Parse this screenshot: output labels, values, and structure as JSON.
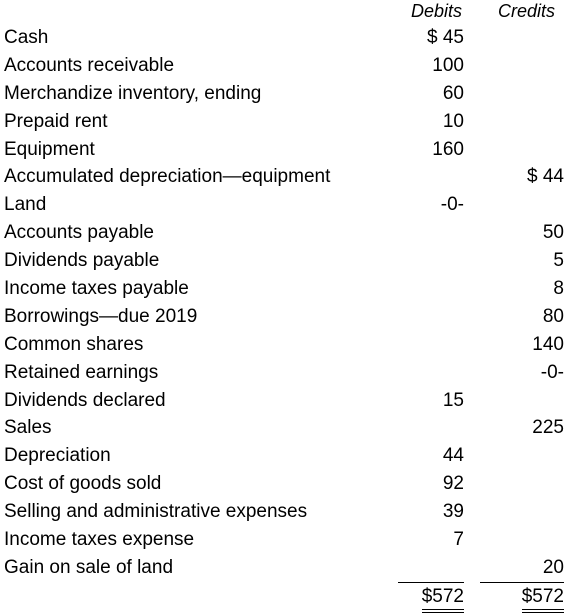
{
  "header": {
    "debit_label": "Debits",
    "credit_label": "Credits"
  },
  "rows": [
    {
      "account": "Cash",
      "debit": "$ 45",
      "credit": ""
    },
    {
      "account": "Accounts receivable",
      "debit": "100",
      "credit": ""
    },
    {
      "account": "Merchandize inventory, ending",
      "debit": "60",
      "credit": ""
    },
    {
      "account": "Prepaid rent",
      "debit": "10",
      "credit": ""
    },
    {
      "account": "Equipment",
      "debit": "160",
      "credit": ""
    },
    {
      "account": "Accumulated depreciation—equipment",
      "debit": "",
      "credit": "$ 44"
    },
    {
      "account": "Land",
      "debit": "-0-",
      "credit": ""
    },
    {
      "account": "Accounts payable",
      "debit": "",
      "credit": "50"
    },
    {
      "account": "Dividends payable",
      "debit": "",
      "credit": "5"
    },
    {
      "account": "Income taxes payable",
      "debit": "",
      "credit": "8"
    },
    {
      "account": "Borrowings—due 2019",
      "debit": "",
      "credit": "80"
    },
    {
      "account": "Common shares",
      "debit": "",
      "credit": "140"
    },
    {
      "account": "Retained earnings",
      "debit": "",
      "credit": "-0-"
    },
    {
      "account": "Dividends declared",
      "debit": "15",
      "credit": ""
    },
    {
      "account": "Sales",
      "debit": "",
      "credit": "225"
    },
    {
      "account": "Depreciation",
      "debit": "44",
      "credit": ""
    },
    {
      "account": "Cost of goods sold",
      "debit": "92",
      "credit": ""
    },
    {
      "account": "Selling and administrative expenses",
      "debit": "39",
      "credit": ""
    },
    {
      "account": "Income taxes expense",
      "debit": "7",
      "credit": ""
    },
    {
      "account": "Gain on sale of land",
      "debit": "",
      "credit": "20"
    }
  ],
  "totals": {
    "debit": "$572",
    "credit": "$572"
  }
}
